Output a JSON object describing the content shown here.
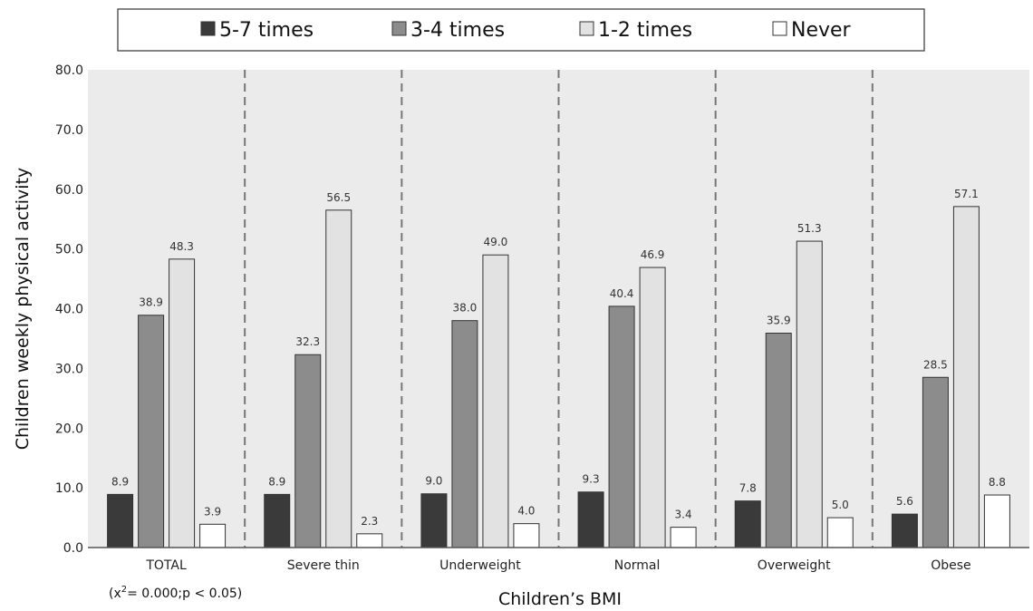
{
  "chart_data": {
    "type": "bar",
    "categories": [
      "TOTAL",
      "Severe thin",
      "Underweight",
      "Normal",
      "Overweight",
      "Obese"
    ],
    "series": [
      {
        "name": "5-7 times",
        "color": "#3a3a3a",
        "values": [
          8.9,
          8.9,
          9.0,
          9.3,
          7.8,
          5.6
        ],
        "labels": [
          "8.9",
          "8.9",
          "9.0",
          "9.3",
          "7.8",
          "5.6"
        ]
      },
      {
        "name": "3-4 times",
        "color": "#8c8c8c",
        "values": [
          38.9,
          32.3,
          38.0,
          40.4,
          35.9,
          28.5
        ],
        "labels": [
          "38.9",
          "32.3",
          "38.0",
          "40.4",
          "35.9",
          "28.5"
        ]
      },
      {
        "name": "1-2 times",
        "color": "#e2e2e2",
        "values": [
          48.3,
          56.5,
          49.0,
          46.9,
          51.3,
          57.1
        ],
        "labels": [
          "48.3",
          "56.5",
          "49.0",
          "46.9",
          "51.3",
          "57.1"
        ]
      },
      {
        "name": "Never",
        "color": "#ffffff",
        "values": [
          3.9,
          2.3,
          4.0,
          3.4,
          5.0,
          8.8
        ],
        "labels": [
          "3.9",
          "2.3",
          "4.0",
          "3.4",
          "5.0",
          "8.8"
        ]
      }
    ],
    "ylim": [
      0,
      80
    ],
    "yticks": [
      "0.0",
      "10.0",
      "20.0",
      "30.0",
      "40.0",
      "50.0",
      "60.0",
      "70.0",
      "80.0"
    ],
    "xlabel": "Children’s BMI",
    "ylabel": "Children weekly physical activity",
    "annotation": "= 0.000;p < 0.05)",
    "annotation_prefix": "(x",
    "annotation_sup": "2",
    "legend_position": "top",
    "grid": false,
    "plot_background": "#ebebeb",
    "group_separators": "dashed"
  }
}
